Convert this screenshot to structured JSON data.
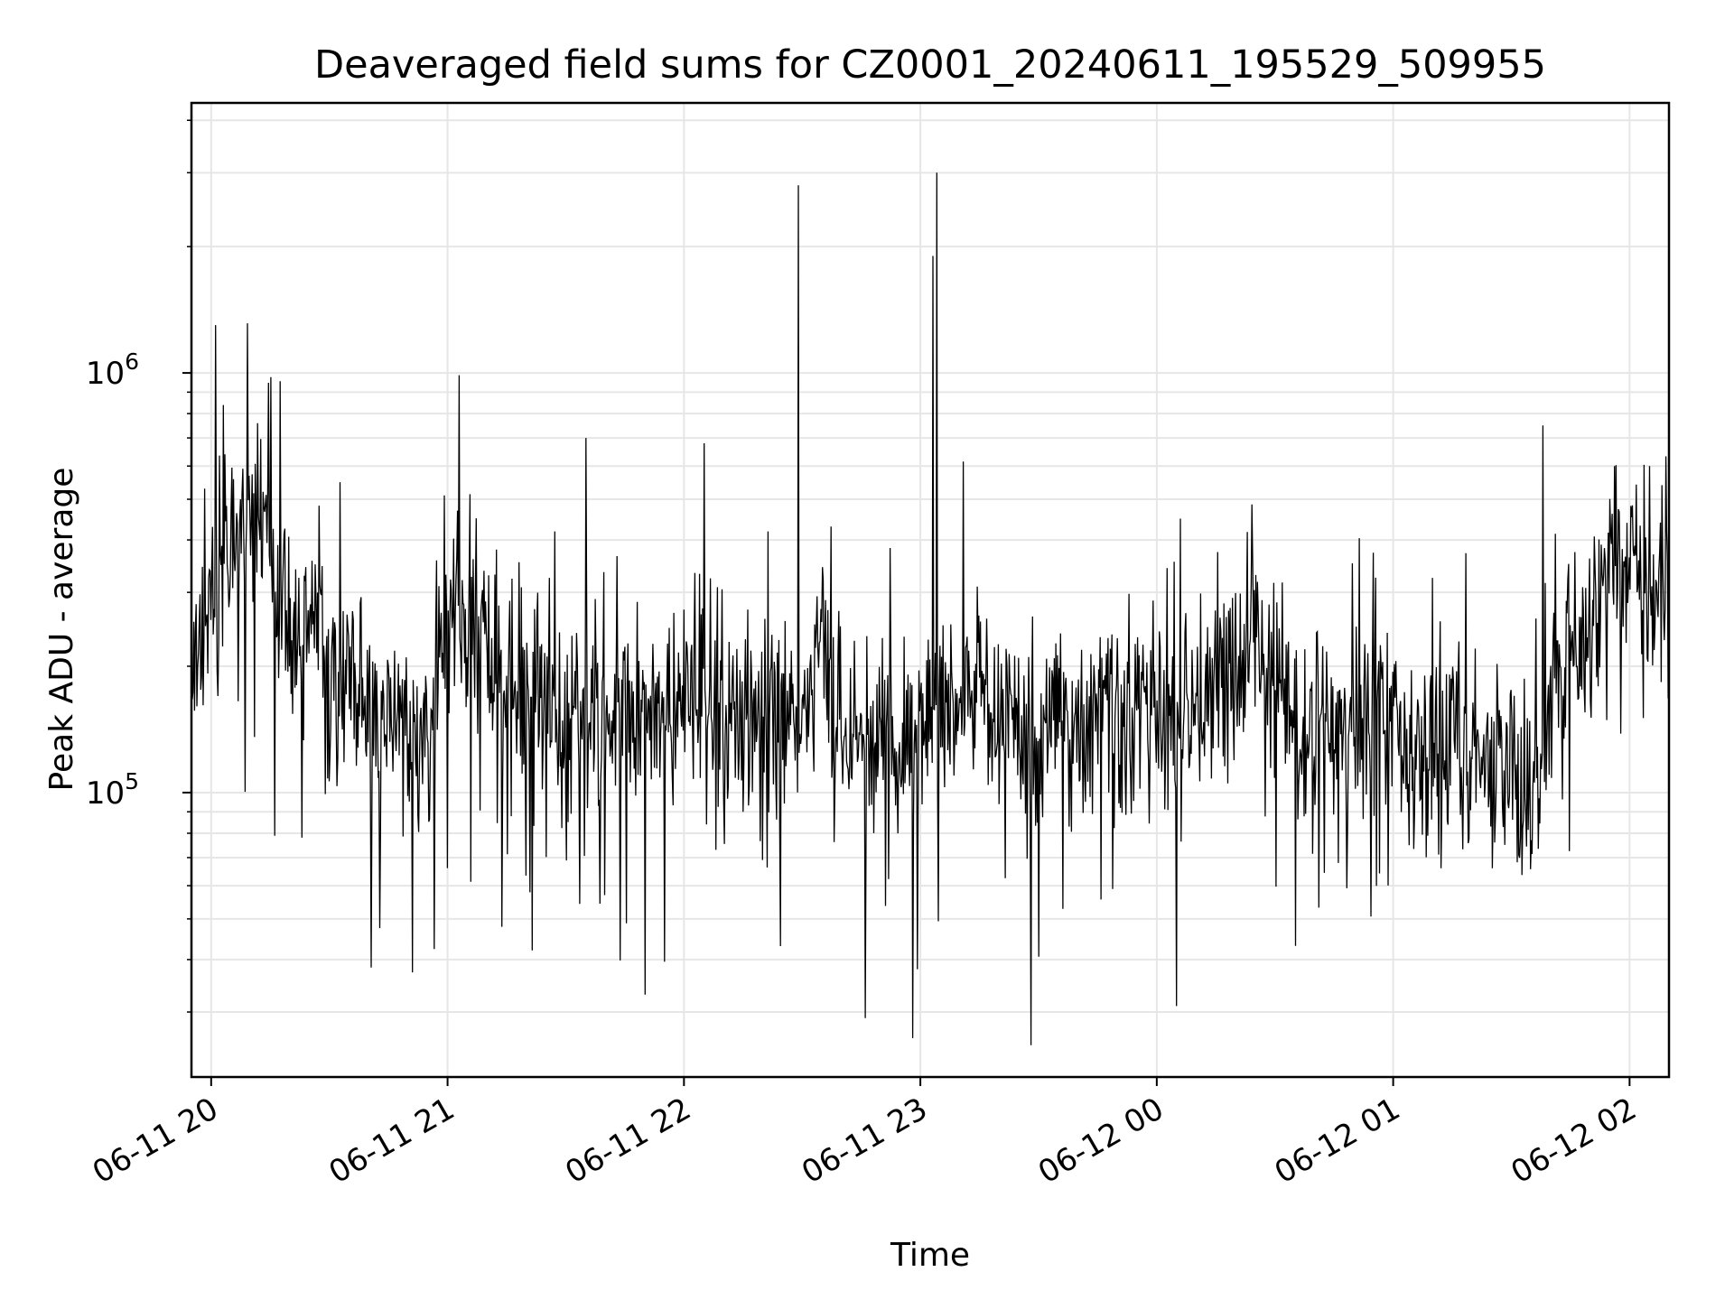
{
  "chart_data": {
    "type": "line",
    "title": "Deaveraged field sums for CZ0001_20240611_195529_509955",
    "xlabel": "Time",
    "ylabel": "Peak ADU - average",
    "yscale": "log",
    "ylim": [
      21000,
      4400000
    ],
    "xlim": [
      "2024-06-11 19:55",
      "2024-06-12 02:10"
    ],
    "grid": true,
    "x_ticks": [
      {
        "value": "2024-06-11 20:00",
        "label": "06-11 20"
      },
      {
        "value": "2024-06-11 21:00",
        "label": "06-11 21"
      },
      {
        "value": "2024-06-11 22:00",
        "label": "06-11 22"
      },
      {
        "value": "2024-06-11 23:00",
        "label": "06-11 23"
      },
      {
        "value": "2024-06-12 00:00",
        "label": "06-12 00"
      },
      {
        "value": "2024-06-12 01:00",
        "label": "06-12 01"
      },
      {
        "value": "2024-06-12 02:00",
        "label": "06-12 02"
      }
    ],
    "y_ticks": [
      {
        "value": 100000,
        "base": "10",
        "exp": "5"
      },
      {
        "value": 1000000,
        "base": "10",
        "exp": "6"
      }
    ],
    "series": [
      {
        "color": "#000000",
        "x": [
          "2024-06-11 19:55",
          "2024-06-11 20:00",
          "2024-06-11 20:05",
          "2024-06-11 20:10",
          "2024-06-11 20:15",
          "2024-06-11 20:20",
          "2024-06-11 20:25",
          "2024-06-11 20:30",
          "2024-06-11 20:35",
          "2024-06-11 20:40",
          "2024-06-11 20:45",
          "2024-06-11 20:50",
          "2024-06-11 20:55",
          "2024-06-11 21:00",
          "2024-06-11 21:05",
          "2024-06-11 21:10",
          "2024-06-11 21:15",
          "2024-06-11 21:20",
          "2024-06-11 21:25",
          "2024-06-11 21:30",
          "2024-06-11 21:35",
          "2024-06-11 21:40",
          "2024-06-11 21:45",
          "2024-06-11 21:50",
          "2024-06-11 21:55",
          "2024-06-11 22:00",
          "2024-06-11 22:05",
          "2024-06-11 22:10",
          "2024-06-11 22:15",
          "2024-06-11 22:20",
          "2024-06-11 22:25",
          "2024-06-11 22:30",
          "2024-06-11 22:35",
          "2024-06-11 22:40",
          "2024-06-11 22:45",
          "2024-06-11 22:50",
          "2024-06-11 22:55",
          "2024-06-11 23:00",
          "2024-06-11 23:05",
          "2024-06-11 23:10",
          "2024-06-11 23:15",
          "2024-06-11 23:20",
          "2024-06-11 23:25",
          "2024-06-11 23:30",
          "2024-06-11 23:35",
          "2024-06-11 23:40",
          "2024-06-11 23:45",
          "2024-06-11 23:50",
          "2024-06-11 23:55",
          "2024-06-12 00:00",
          "2024-06-12 00:05",
          "2024-06-12 00:10",
          "2024-06-12 00:15",
          "2024-06-12 00:20",
          "2024-06-12 00:25",
          "2024-06-12 00:30",
          "2024-06-12 00:35",
          "2024-06-12 00:40",
          "2024-06-12 00:45",
          "2024-06-12 00:50",
          "2024-06-12 00:55",
          "2024-06-12 01:00",
          "2024-06-12 01:05",
          "2024-06-12 01:10",
          "2024-06-12 01:15",
          "2024-06-12 01:20",
          "2024-06-12 01:25",
          "2024-06-12 01:30",
          "2024-06-12 01:35",
          "2024-06-12 01:40",
          "2024-06-12 01:45",
          "2024-06-12 01:50",
          "2024-06-12 01:55",
          "2024-06-12 02:00",
          "2024-06-12 02:05",
          "2024-06-12 02:10"
        ],
        "values": [
          200000,
          280000,
          400000,
          500000,
          360000,
          250000,
          230000,
          210000,
          180000,
          150000,
          160000,
          130000,
          140000,
          240000,
          300000,
          220000,
          180000,
          150000,
          160000,
          150000,
          160000,
          150000,
          150000,
          160000,
          150000,
          160000,
          170000,
          140000,
          150000,
          160000,
          140000,
          150000,
          230000,
          130000,
          140000,
          130000,
          120000,
          140000,
          160000,
          160000,
          170000,
          160000,
          150000,
          140000,
          150000,
          140000,
          150000,
          150000,
          150000,
          160000,
          150000,
          150000,
          170000,
          220000,
          240000,
          200000,
          140000,
          140000,
          150000,
          150000,
          160000,
          160000,
          120000,
          130000,
          130000,
          130000,
          120000,
          110000,
          90000,
          180000,
          250000,
          260000,
          400000,
          350000,
          300000,
          320000
        ]
      }
    ],
    "annotations": [
      {
        "x": "2024-06-11 20:01",
        "y": 1300000
      },
      {
        "x": "2024-06-11 22:29",
        "y": 2800000
      },
      {
        "x": "2024-06-11 23:04",
        "y": 3000000
      },
      {
        "x": "2024-06-11 23:03",
        "y": 1900000
      },
      {
        "x": "2024-06-11 22:05",
        "y": 680000
      },
      {
        "x": "2024-06-11 21:35",
        "y": 700000
      },
      {
        "x": "2024-06-11 21:50",
        "y": 33000
      },
      {
        "x": "2024-06-11 22:46",
        "y": 29000
      },
      {
        "x": "2024-06-11 22:58",
        "y": 26000
      },
      {
        "x": "2024-06-11 23:28",
        "y": 25000
      },
      {
        "x": "2024-06-12 00:05",
        "y": 31000
      },
      {
        "x": "2024-06-12 01:38",
        "y": 750000
      },
      {
        "x": "2024-06-12 01:56",
        "y": 600000
      },
      {
        "x": "2024-06-12 02:05",
        "y": 600000
      }
    ]
  }
}
